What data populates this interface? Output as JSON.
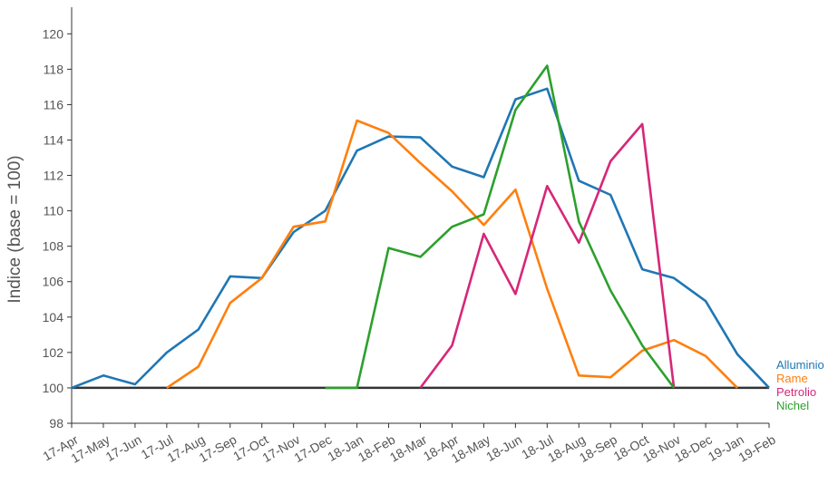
{
  "chart_data": {
    "type": "line",
    "ylabel": "Indice (base = 100)",
    "xlabel": "",
    "ylim": [
      98,
      121.5
    ],
    "yticks": [
      98,
      100,
      102,
      104,
      106,
      108,
      110,
      112,
      114,
      116,
      118,
      120
    ],
    "categories": [
      "17-Apr",
      "17-May",
      "17-Jun",
      "17-Jul",
      "17-Aug",
      "17-Sep",
      "17-Oct",
      "17-Nov",
      "17-Dec",
      "18-Jan",
      "18-Feb",
      "18-Mar",
      "18-Apr",
      "18-May",
      "18-Jun",
      "18-Jul",
      "18-Aug",
      "18-Sep",
      "18-Oct",
      "18-Nov",
      "18-Dec",
      "19-Jan",
      "19-Feb"
    ],
    "baseline": 100,
    "baseline_color": "#333333",
    "legend_position": "right",
    "series": [
      {
        "name": "Alluminio",
        "color": "#1f77b4",
        "values": [
          100,
          100.7,
          100.2,
          102.0,
          103.3,
          106.3,
          106.2,
          108.8,
          110.0,
          113.4,
          114.2,
          114.15,
          112.5,
          111.9,
          116.3,
          116.9,
          111.7,
          110.9,
          106.7,
          106.2,
          104.9,
          101.9,
          100.0
        ]
      },
      {
        "name": "Rame",
        "color": "#ff7f0e",
        "values": [
          null,
          null,
          null,
          100.0,
          101.2,
          104.8,
          106.2,
          109.1,
          109.4,
          115.1,
          114.4,
          112.7,
          111.1,
          109.2,
          111.2,
          105.6,
          100.7,
          100.6,
          102.1,
          102.7,
          101.8,
          100.0,
          null
        ]
      },
      {
        "name": "Petrolio",
        "color": "#d62778",
        "values": [
          null,
          null,
          null,
          null,
          null,
          null,
          null,
          null,
          null,
          null,
          null,
          100.0,
          102.4,
          108.7,
          105.3,
          111.4,
          108.2,
          112.8,
          114.9,
          100.0,
          null,
          null,
          null
        ]
      },
      {
        "name": "Nichel",
        "color": "#2ca02c",
        "values": [
          null,
          null,
          null,
          null,
          null,
          null,
          null,
          null,
          100.0,
          100.0,
          107.9,
          107.4,
          109.1,
          109.8,
          115.7,
          118.2,
          109.4,
          105.5,
          102.4,
          100.0,
          null,
          null,
          null
        ]
      }
    ]
  }
}
